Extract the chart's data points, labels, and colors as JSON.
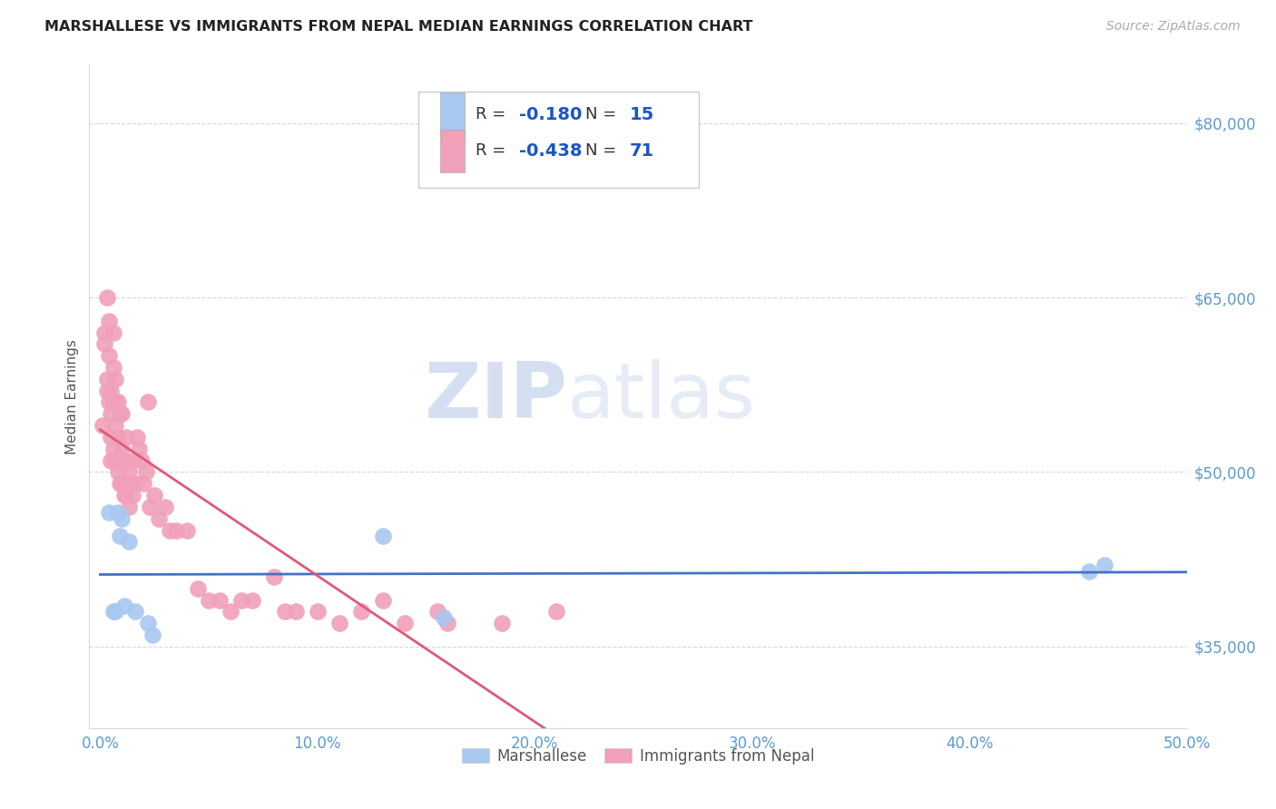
{
  "title": "MARSHALLESE VS IMMIGRANTS FROM NEPAL MEDIAN EARNINGS CORRELATION CHART",
  "source": "Source: ZipAtlas.com",
  "ylabel": "Median Earnings",
  "tick_color": "#5b9bd5",
  "x_ticks": [
    0.0,
    0.1,
    0.2,
    0.3,
    0.4,
    0.5
  ],
  "x_tick_labels": [
    "0.0%",
    "10.0%",
    "20.0%",
    "30.0%",
    "40.0%",
    "50.0%"
  ],
  "y_tick_labels": [
    "$35,000",
    "$50,000",
    "$65,000",
    "$80,000"
  ],
  "y_ticks": [
    35000,
    50000,
    65000,
    80000
  ],
  "xlim": [
    -0.005,
    0.5
  ],
  "ylim": [
    28000,
    85000
  ],
  "watermark_zip": "ZIP",
  "watermark_atlas": "atlas",
  "blue_color": "#a8c8f0",
  "pink_color": "#f0a0b8",
  "blue_line_color": "#4472c4",
  "pink_line_color": "#e05878",
  "legend_R_blue": "-0.180",
  "legend_N_blue": "15",
  "legend_R_pink": "-0.438",
  "legend_N_pink": "71",
  "legend_label_blue": "Marshallese",
  "legend_label_pink": "Immigrants from Nepal",
  "blue_scatter_x": [
    0.004,
    0.006,
    0.007,
    0.008,
    0.009,
    0.01,
    0.011,
    0.013,
    0.016,
    0.022,
    0.024,
    0.13,
    0.158,
    0.455,
    0.462
  ],
  "blue_scatter_y": [
    46500,
    38000,
    38000,
    46500,
    44500,
    46000,
    38500,
    44000,
    38000,
    37000,
    36000,
    44500,
    37500,
    41500,
    42000
  ],
  "pink_scatter_x": [
    0.001,
    0.002,
    0.002,
    0.003,
    0.003,
    0.003,
    0.004,
    0.004,
    0.004,
    0.005,
    0.005,
    0.005,
    0.005,
    0.006,
    0.006,
    0.006,
    0.006,
    0.007,
    0.007,
    0.007,
    0.007,
    0.008,
    0.008,
    0.008,
    0.009,
    0.009,
    0.009,
    0.01,
    0.01,
    0.01,
    0.011,
    0.011,
    0.012,
    0.012,
    0.013,
    0.013,
    0.014,
    0.015,
    0.015,
    0.016,
    0.017,
    0.018,
    0.019,
    0.02,
    0.021,
    0.022,
    0.023,
    0.025,
    0.027,
    0.03,
    0.032,
    0.035,
    0.04,
    0.045,
    0.05,
    0.055,
    0.06,
    0.065,
    0.07,
    0.08,
    0.085,
    0.09,
    0.1,
    0.11,
    0.12,
    0.13,
    0.14,
    0.155,
    0.16,
    0.185,
    0.21
  ],
  "pink_scatter_y": [
    54000,
    61000,
    62000,
    57000,
    58000,
    65000,
    63000,
    60000,
    56000,
    57000,
    55000,
    53000,
    51000,
    62000,
    59000,
    56000,
    52000,
    54000,
    58000,
    56000,
    51000,
    50000,
    53000,
    56000,
    49000,
    51000,
    55000,
    49000,
    52000,
    55000,
    48000,
    51000,
    48000,
    53000,
    47000,
    50000,
    49000,
    48000,
    51000,
    49000,
    53000,
    52000,
    51000,
    49000,
    50000,
    56000,
    47000,
    48000,
    46000,
    47000,
    45000,
    45000,
    45000,
    40000,
    39000,
    39000,
    38000,
    39000,
    39000,
    41000,
    38000,
    38000,
    38000,
    37000,
    38000,
    39000,
    37000,
    38000,
    37000,
    37000,
    38000
  ],
  "grid_color": "#d0d8e8",
  "title_fontsize": 11.5,
  "source_fontsize": 10
}
